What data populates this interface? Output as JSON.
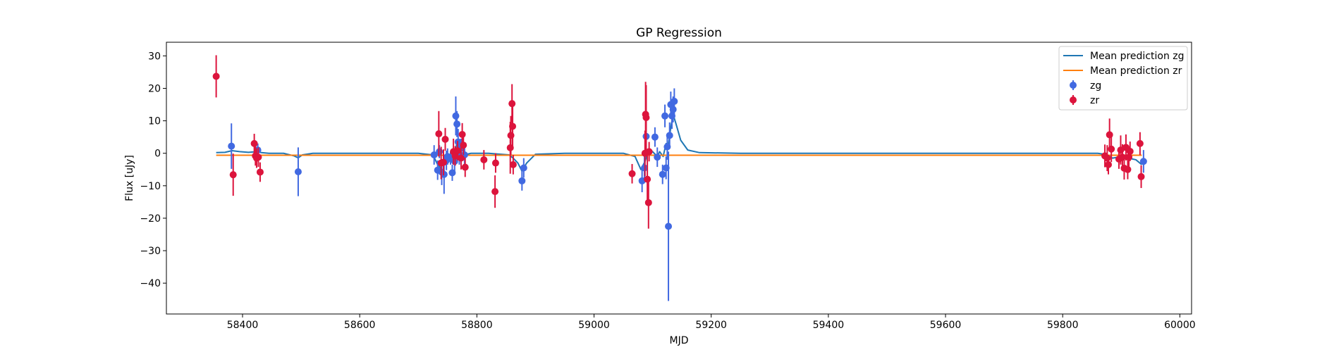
{
  "chart_data": {
    "type": "scatter",
    "title": "GP Regression",
    "xlabel": "MJD",
    "ylabel": "Flux [uJy]",
    "xlim": [
      58270,
      60020
    ],
    "ylim": [
      -49.5,
      34.2
    ],
    "xticks": [
      58400,
      58600,
      58800,
      59000,
      59200,
      59400,
      59600,
      59800,
      60000
    ],
    "xtick_labels": [
      "58400",
      "58600",
      "58800",
      "59000",
      "59200",
      "59400",
      "59600",
      "59800",
      "60000"
    ],
    "yticks": [
      30,
      20,
      10,
      0,
      -10,
      -20,
      -30,
      -40
    ],
    "ytick_labels": [
      "30",
      "20",
      "10",
      "0",
      "−10",
      "−20",
      "−30",
      "−40"
    ],
    "grid": false,
    "legend_position": "top-right",
    "colors": {
      "mean_zg": "#1f77b4",
      "mean_zr": "#ff7f0e",
      "zg": "#4169e1",
      "zr": "#dc143c"
    },
    "series": [
      {
        "name": "Mean prediction zg",
        "kind": "line",
        "color_key": "mean_zg",
        "x": [
          58355,
          58370,
          58382,
          58395,
          58410,
          58425,
          58432,
          58445,
          58470,
          58488,
          58495,
          58502,
          58520,
          58600,
          58700,
          58725,
          58733,
          58738,
          58745,
          58752,
          58760,
          58766,
          58772,
          58778,
          58790,
          58820,
          58855,
          58862,
          58870,
          58877,
          58885,
          58900,
          58950,
          59000,
          59050,
          59070,
          59080,
          59087,
          59092,
          59100,
          59108,
          59112,
          59118,
          59123,
          59127,
          59131,
          59135,
          59140,
          59148,
          59160,
          59180,
          59250,
          59400,
          59600,
          59800,
          59860,
          59875,
          59885,
          59895,
          59905,
          59915,
          59925,
          59935
        ],
        "y": [
          0.2,
          0.3,
          0.8,
          0.5,
          0.3,
          0.5,
          0.2,
          0.0,
          0.0,
          -0.8,
          -1.4,
          -0.5,
          0.0,
          0.0,
          0.0,
          -0.5,
          -3.5,
          -4.5,
          -2.5,
          -2.0,
          -1.0,
          3.0,
          0.5,
          -0.5,
          0.0,
          0.0,
          -0.5,
          -1.5,
          -3.0,
          -5.5,
          -3.0,
          -0.3,
          0.0,
          0.0,
          0.0,
          -1.0,
          -5.0,
          -2.5,
          0.2,
          0.5,
          -1.0,
          0.5,
          -1.0,
          3.0,
          2.5,
          8.0,
          12.0,
          9.0,
          4.0,
          1.0,
          0.2,
          0.0,
          0.0,
          0.0,
          0.0,
          0.0,
          -0.4,
          -1.5,
          -1.2,
          -0.8,
          -1.6,
          -2.0,
          -3.5
        ]
      },
      {
        "name": "Mean prediction zr",
        "kind": "line",
        "color_key": "mean_zr",
        "x": [
          58355,
          59935
        ],
        "y": [
          -0.6,
          -0.6
        ]
      },
      {
        "name": "zg",
        "kind": "errorbar",
        "color_key": "zg",
        "x": [
          58381,
          58426,
          58495,
          58727,
          58733,
          58736,
          58740,
          58744,
          58748,
          58750,
          58755,
          58758,
          58762,
          58764,
          58766,
          58768,
          58770,
          58773,
          58779,
          58877,
          58880,
          59082,
          59086,
          59089,
          59104,
          59108,
          59117,
          59121,
          59123,
          59125,
          59127,
          59129,
          59131,
          59133,
          59135,
          59137,
          59938
        ],
        "y": [
          2.2,
          1.0,
          -5.7,
          -0.5,
          -5.2,
          0.5,
          -5.8,
          -6.5,
          -2.2,
          -1.0,
          -1.5,
          -6.0,
          -2.5,
          11.5,
          9.0,
          3.5,
          -0.5,
          1.5,
          -0.5,
          -8.5,
          -4.5,
          -8.5,
          -4.5,
          5.2,
          5.0,
          -1.2,
          -6.5,
          11.5,
          -4.5,
          2.0,
          -22.5,
          5.5,
          15.0,
          11.5,
          13.5,
          16.0,
          -2.5
        ],
        "err": [
          7.0,
          2.0,
          7.5,
          3.0,
          3.0,
          2.0,
          4.0,
          6.0,
          3.0,
          2.5,
          2.0,
          2.5,
          3.0,
          6.0,
          4.0,
          4.0,
          3.0,
          3.0,
          3.0,
          3.0,
          3.0,
          3.5,
          3.5,
          5.0,
          3.0,
          3.0,
          3.0,
          3.5,
          3.5,
          4.0,
          23.0,
          4.0,
          4.0,
          4.0,
          4.0,
          4.0,
          3.5
        ]
      },
      {
        "name": "zr",
        "kind": "errorbar",
        "color_key": "zr",
        "x": [
          58355,
          58384,
          58420,
          58422,
          58424,
          58427,
          58430,
          58735,
          58739,
          58743,
          58746,
          58760,
          58763,
          58767,
          58773,
          58775,
          58777,
          58780,
          58812,
          58831,
          58832,
          58857,
          58858,
          58860,
          58861,
          58862,
          59065,
          59087,
          59088,
          59089,
          59091,
          59093,
          59094,
          59872,
          59876,
          59878,
          59880,
          59883,
          59896,
          59899,
          59902,
          59905,
          59908,
          59911,
          59913,
          59915,
          59932,
          59934
        ],
        "y": [
          23.7,
          -6.6,
          3.0,
          -0.8,
          -1.5,
          -1.2,
          -5.8,
          6.0,
          -3.0,
          -2.8,
          4.3,
          0.5,
          -0.8,
          0.8,
          -1.5,
          5.8,
          2.5,
          -4.3,
          -2.0,
          -11.8,
          -3.0,
          1.7,
          5.5,
          15.3,
          8.3,
          -3.5,
          -6.3,
          0.0,
          12.0,
          11.0,
          -8.0,
          -15.2,
          0.5,
          -0.8,
          -1.5,
          -3.5,
          5.7,
          1.3,
          -1.8,
          1.0,
          -1.2,
          -4.6,
          1.8,
          -5.0,
          -1.2,
          0.6,
          3.0,
          -7.2
        ],
        "err": [
          6.5,
          6.5,
          3.0,
          3.0,
          3.0,
          3.0,
          3.0,
          7.0,
          5.0,
          4.0,
          3.5,
          4.0,
          3.0,
          3.0,
          3.5,
          3.5,
          3.0,
          3.0,
          3.0,
          5.0,
          3.0,
          8.0,
          6.0,
          6.0,
          7.0,
          3.0,
          3.0,
          7.0,
          10.0,
          10.0,
          8.0,
          8.0,
          3.0,
          3.5,
          4.0,
          3.0,
          5.0,
          4.0,
          3.0,
          4.5,
          4.0,
          3.5,
          4.0,
          3.0,
          3.0,
          3.0,
          3.5,
          3.5
        ]
      }
    ],
    "legend": [
      {
        "label": "Mean prediction zg",
        "symbol": "line",
        "color_key": "mean_zg"
      },
      {
        "label": "Mean prediction zr",
        "symbol": "line",
        "color_key": "mean_zr"
      },
      {
        "label": "zg",
        "symbol": "errorbar",
        "color_key": "zg"
      },
      {
        "label": "zr",
        "symbol": "errorbar",
        "color_key": "zr"
      }
    ]
  }
}
